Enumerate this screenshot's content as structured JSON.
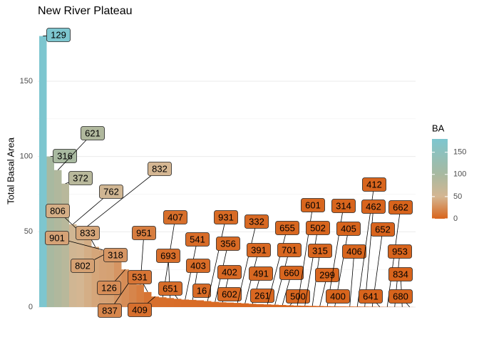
{
  "chart_data": {
    "type": "bar",
    "title": "New River Plateau",
    "y_label": "Total Basal Area",
    "categories": [
      "129",
      "316",
      "621",
      "372",
      "762",
      "832",
      "806",
      "833",
      "901",
      "802",
      "318",
      "126",
      "837",
      "951",
      "531",
      "409",
      "407",
      "693",
      "651",
      "541",
      "403",
      "16",
      "931",
      "356",
      "402",
      "602",
      "332",
      "391",
      "491",
      "261",
      "655",
      "701",
      "660",
      "500",
      "601",
      "502",
      "315",
      "299",
      "314",
      "405",
      "400",
      "406",
      "412",
      "462",
      "652",
      "641",
      "662",
      "953",
      "834",
      "680"
    ],
    "values": [
      180,
      100,
      91,
      82,
      55,
      50,
      45,
      40,
      38,
      37,
      30,
      25,
      20,
      15,
      10,
      7,
      6.5,
      6,
      5.5,
      5,
      4.8,
      4.5,
      4,
      3.5,
      3.2,
      3,
      2.8,
      2.5,
      2.2,
      2,
      1.8,
      1.6,
      1.4,
      1.2,
      1,
      0.9,
      0.8,
      0.7,
      0.6,
      0.5,
      0.45,
      0.4,
      0.35,
      0.3,
      0.25,
      0.2,
      0.15,
      0.1,
      0.08,
      0.05
    ],
    "ylim": [
      0,
      185
    ],
    "yticks": [
      0,
      50,
      100,
      150
    ],
    "grid": true,
    "color_scale": {
      "title": "BA",
      "range": [
        0,
        180
      ],
      "ticks": [
        0,
        50,
        100,
        150
      ],
      "stops": [
        {
          "value": 0,
          "color": "#d8641c"
        },
        {
          "value": 50,
          "color": "#d4b692"
        },
        {
          "value": 100,
          "color": "#a8b9a0"
        },
        {
          "value": 180,
          "color": "#7dc6cf"
        }
      ]
    }
  }
}
